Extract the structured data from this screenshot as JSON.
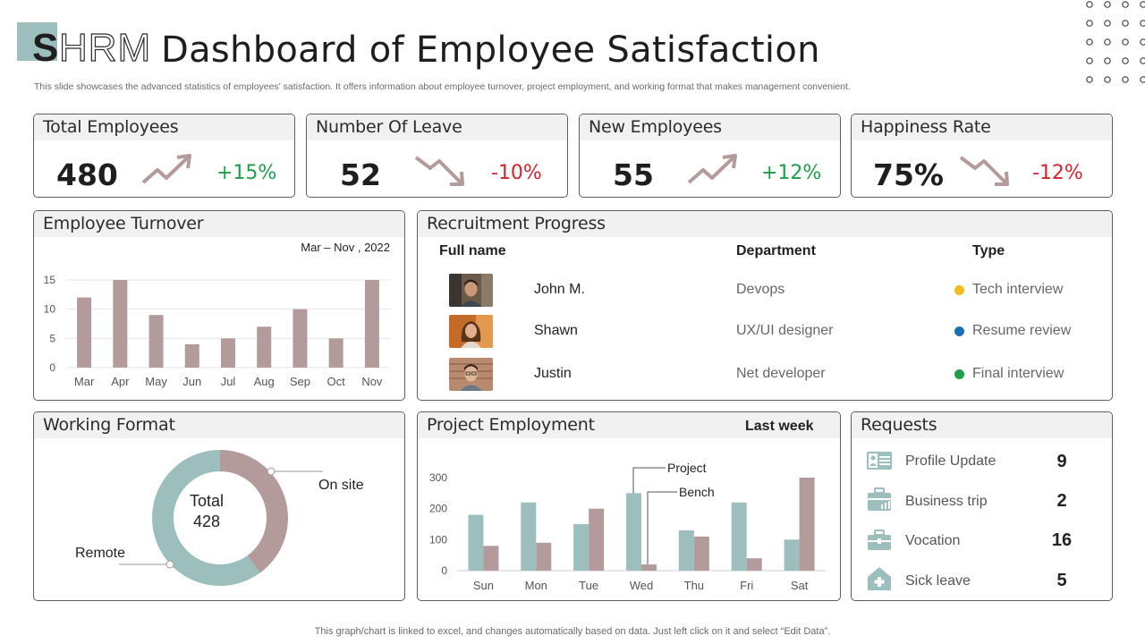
{
  "header": {
    "logo_letter": "S",
    "logo_rest": "HRM",
    "title": "Dashboard of Employee Satisfaction",
    "subtitle": "This slide showcases the advanced statistics of employees' satisfaction. It offers information about employee turnover, project employment, and working format that makes management convenient."
  },
  "kpis": [
    {
      "title": "Total Employees",
      "value": "480",
      "change": "+15%",
      "trend": "up"
    },
    {
      "title": "Number Of Leave",
      "value": "52",
      "change": "-10%",
      "trend": "down"
    },
    {
      "title": "New Employees",
      "value": "55",
      "change": "+12%",
      "trend": "up"
    },
    {
      "title": "Happiness Rate",
      "value": "75%",
      "change": "-12%",
      "trend": "down"
    }
  ],
  "turnover": {
    "title": "Employee Turnover",
    "period": "Mar – Nov , 2022"
  },
  "recruitment": {
    "title": "Recruitment Progress",
    "headers": {
      "name": "Full name",
      "department": "Department",
      "type": "Type"
    },
    "rows": [
      {
        "name": "John M.",
        "department": "Devops",
        "type": "Tech interview",
        "color": "#f2bd1d"
      },
      {
        "name": "Shawn",
        "department": "UX/UI designer",
        "type": "Resume review",
        "color": "#1f6fb5"
      },
      {
        "name": "Justin",
        "department": "Net developer",
        "type": "Final interview",
        "color": "#1e9e4a"
      }
    ]
  },
  "working_format": {
    "title": "Working Format"
  },
  "project_employment": {
    "title": "Project Employment",
    "period": "Last week"
  },
  "requests": {
    "title": "Requests",
    "items": [
      {
        "label": "Profile Update",
        "count": "9",
        "icon": "profile-card-icon"
      },
      {
        "label": "Business trip",
        "count": "2",
        "icon": "briefcase-chart-icon"
      },
      {
        "label": "Vocation",
        "count": "16",
        "icon": "suitcase-icon"
      },
      {
        "label": "Sick leave",
        "count": "5",
        "icon": "medical-house-icon"
      }
    ]
  },
  "footer": "This graph/chart is linked to excel, and changes automatically based on data. Just left click on it and select “Edit Data”.",
  "colors": {
    "bar_mauve": "#b39b9b",
    "bar_teal": "#9cbfbe",
    "positive": "#1e9e4a",
    "negative": "#d8222b"
  },
  "chart_data": [
    {
      "type": "bar",
      "title": "Employee Turnover",
      "categories": [
        "Mar",
        "Apr",
        "May",
        "Jun",
        "Jul",
        "Aug",
        "Sep",
        "Oct",
        "Nov"
      ],
      "values": [
        12,
        15,
        9,
        4,
        5,
        7,
        10,
        5,
        15
      ],
      "ylim": [
        0,
        15
      ],
      "yticks": [
        0,
        5,
        10,
        15
      ],
      "grid": true
    },
    {
      "type": "pie",
      "title": "Working Format",
      "donut": true,
      "center_label": "Total",
      "center_value": "428",
      "slices": [
        {
          "name": "On site",
          "value": 40,
          "color": "#b39b9b"
        },
        {
          "name": "Remote",
          "value": 60,
          "color": "#9cbfbe"
        }
      ]
    },
    {
      "type": "bar",
      "title": "Project Employment",
      "categories": [
        "Sun",
        "Mon",
        "Tue",
        "Wed",
        "Thu",
        "Fri",
        "Sat"
      ],
      "series": [
        {
          "name": "Project",
          "values": [
            180,
            220,
            150,
            250,
            130,
            220,
            100
          ],
          "color": "#9cbfbe"
        },
        {
          "name": "Bench",
          "values": [
            80,
            90,
            200,
            20,
            110,
            40,
            300
          ],
          "color": "#b39b9b"
        }
      ],
      "ylim": [
        0,
        300
      ],
      "yticks": [
        0,
        100,
        200,
        300
      ]
    }
  ]
}
